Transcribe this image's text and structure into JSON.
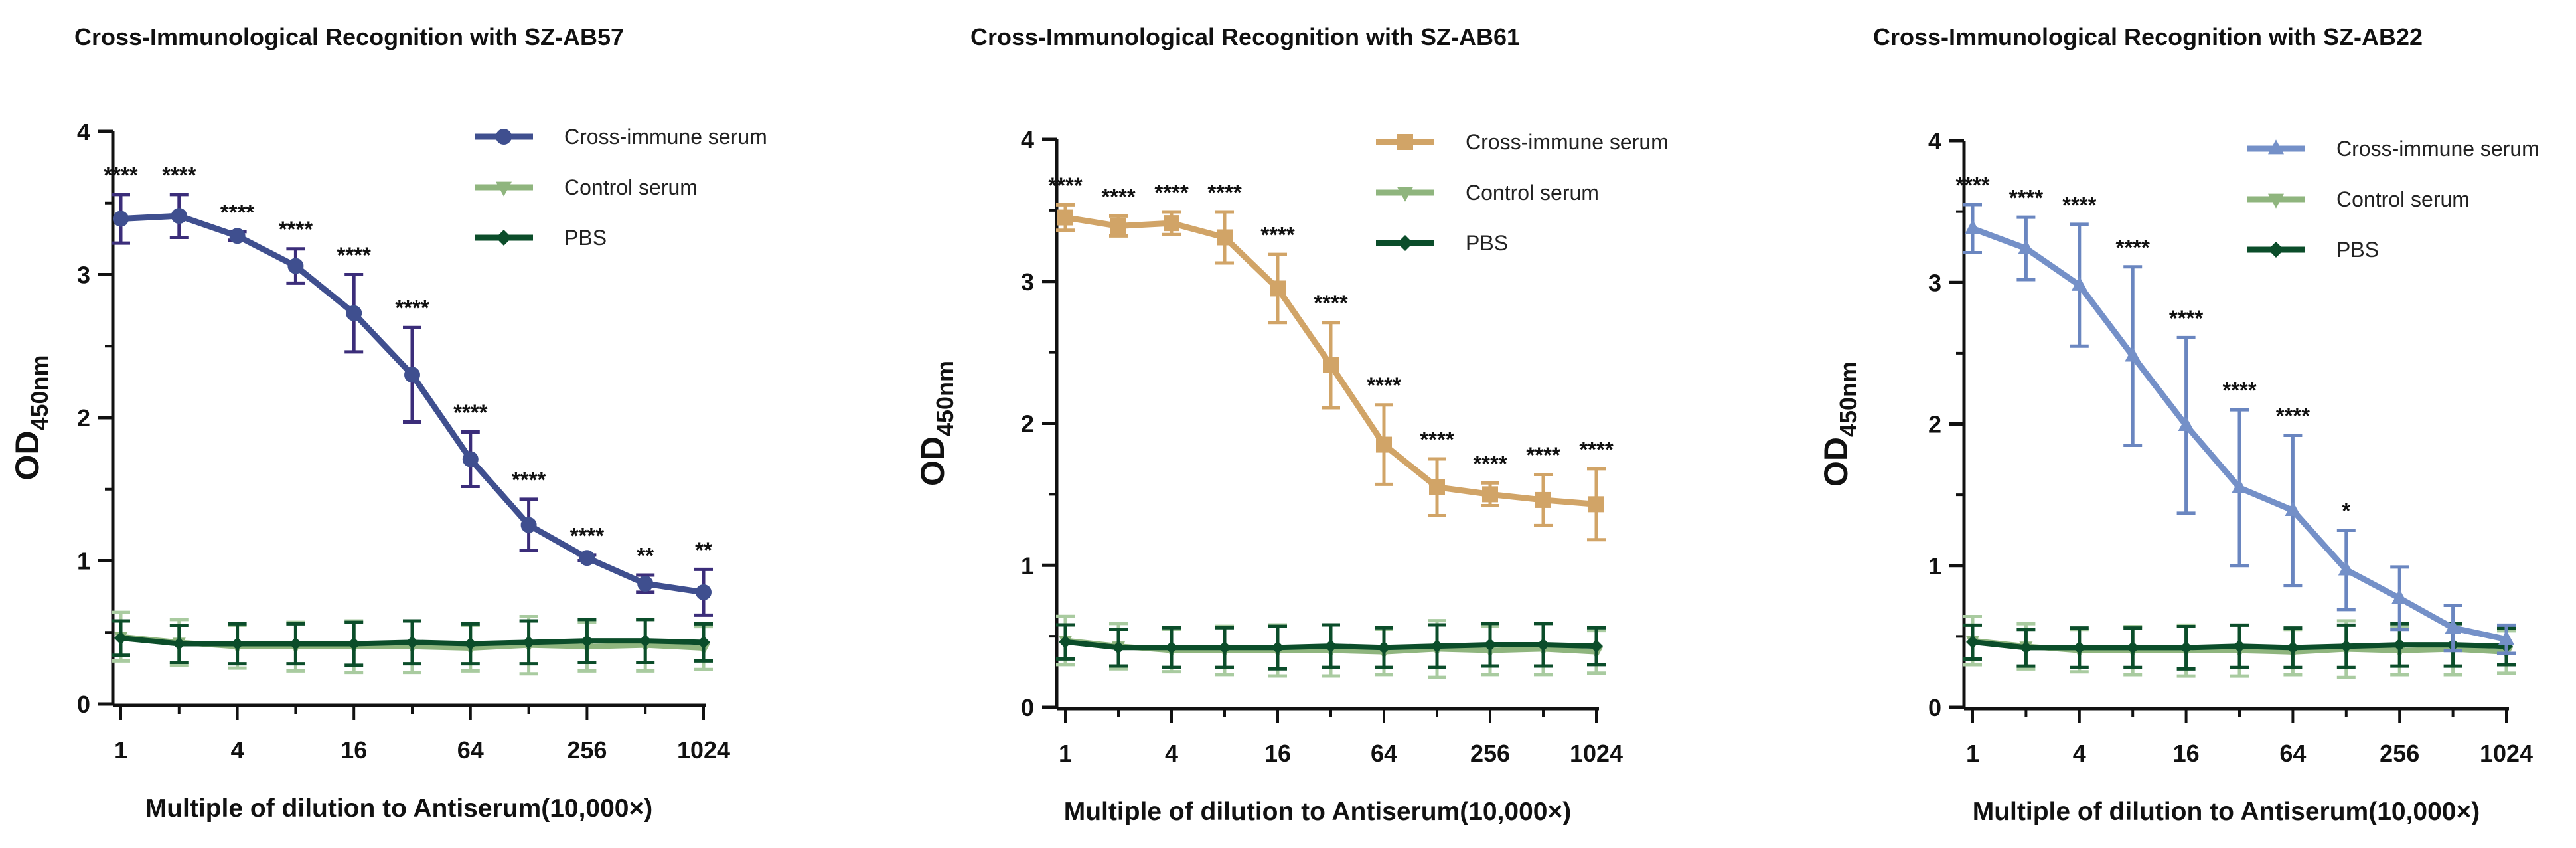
{
  "chart_data": [
    {
      "type": "line",
      "title": "Cross-Immunological Recognition with SZ-AB57",
      "xlabel": "Multiple of dilution to Antiserum(10,000×)",
      "ylabel": "OD",
      "ylabel_sub": "450nm",
      "x": [
        1,
        2,
        4,
        8,
        16,
        32,
        64,
        128,
        256,
        512,
        1024
      ],
      "x_scale": "log2",
      "xticks": [
        1,
        4,
        16,
        64,
        256,
        1024
      ],
      "xtick_labels": [
        "1",
        "4",
        "16",
        "64",
        "256",
        "1024"
      ],
      "ylim": [
        0,
        4
      ],
      "yticks": [
        "0",
        "1",
        "2",
        "3",
        "4"
      ],
      "series": [
        {
          "name": "Cross-immune serum",
          "color": "#3f4f8f",
          "err_color": "#3b2d7a",
          "marker": "circle",
          "values": [
            3.39,
            3.41,
            3.27,
            3.06,
            2.73,
            2.3,
            1.71,
            1.25,
            1.02,
            0.84,
            0.78
          ],
          "errors": [
            0.17,
            0.15,
            0.03,
            0.12,
            0.27,
            0.33,
            0.19,
            0.18,
            0.02,
            0.06,
            0.16
          ]
        },
        {
          "name": "Control serum",
          "color": "#8fb57e",
          "err_color": "#a9cba0",
          "marker": "triangle-down",
          "values": [
            0.47,
            0.43,
            0.4,
            0.4,
            0.4,
            0.4,
            0.39,
            0.41,
            0.4,
            0.41,
            0.39
          ],
          "errors": [
            0.17,
            0.16,
            0.15,
            0.17,
            0.18,
            0.18,
            0.16,
            0.2,
            0.17,
            0.18,
            0.15
          ]
        },
        {
          "name": "PBS",
          "color": "#0b4d2a",
          "err_color": "#0b4d2a",
          "marker": "diamond",
          "values": [
            0.46,
            0.42,
            0.42,
            0.42,
            0.42,
            0.43,
            0.42,
            0.43,
            0.44,
            0.44,
            0.43
          ],
          "errors": [
            0.12,
            0.13,
            0.14,
            0.14,
            0.15,
            0.15,
            0.14,
            0.15,
            0.15,
            0.15,
            0.13
          ]
        }
      ],
      "significance": [
        "****",
        "****",
        "****",
        "****",
        "****",
        "****",
        "****",
        "****",
        "****",
        "**",
        "**"
      ],
      "legend": "top-right"
    },
    {
      "type": "line",
      "title": "Cross-Immunological Recognition with SZ-AB61",
      "xlabel": "Multiple of dilution to Antiserum(10,000×)",
      "ylabel": "OD",
      "ylabel_sub": "450nm",
      "x": [
        1,
        2,
        4,
        8,
        16,
        32,
        64,
        128,
        256,
        512,
        1024
      ],
      "x_scale": "log2",
      "xticks": [
        1,
        4,
        16,
        64,
        256,
        1024
      ],
      "xtick_labels": [
        "1",
        "4",
        "16",
        "64",
        "256",
        "1024"
      ],
      "ylim": [
        0,
        4
      ],
      "yticks": [
        "0",
        "1",
        "2",
        "3",
        "4"
      ],
      "series": [
        {
          "name": "Cross-immune serum",
          "color": "#d1a467",
          "err_color": "#d1a467",
          "marker": "square",
          "values": [
            3.45,
            3.39,
            3.41,
            3.31,
            2.95,
            2.41,
            1.85,
            1.55,
            1.5,
            1.46,
            1.43
          ],
          "errors": [
            0.09,
            0.07,
            0.08,
            0.18,
            0.24,
            0.3,
            0.28,
            0.2,
            0.08,
            0.18,
            0.25
          ]
        },
        {
          "name": "Control serum",
          "color": "#8fb57e",
          "err_color": "#a9cba0",
          "marker": "triangle-down",
          "values": [
            0.47,
            0.43,
            0.4,
            0.4,
            0.4,
            0.4,
            0.39,
            0.41,
            0.4,
            0.41,
            0.39
          ],
          "errors": [
            0.17,
            0.16,
            0.15,
            0.17,
            0.18,
            0.18,
            0.16,
            0.2,
            0.17,
            0.18,
            0.15
          ]
        },
        {
          "name": "PBS",
          "color": "#0b4d2a",
          "err_color": "#0b4d2a",
          "marker": "diamond",
          "values": [
            0.46,
            0.42,
            0.42,
            0.42,
            0.42,
            0.43,
            0.42,
            0.43,
            0.44,
            0.44,
            0.43
          ],
          "errors": [
            0.12,
            0.13,
            0.14,
            0.14,
            0.15,
            0.15,
            0.14,
            0.15,
            0.15,
            0.15,
            0.13
          ]
        }
      ],
      "significance": [
        "****",
        "****",
        "****",
        "****",
        "****",
        "****",
        "****",
        "****",
        "****",
        "****",
        "****"
      ],
      "legend": "top-right"
    },
    {
      "type": "line",
      "title": "Cross-Immunological Recognition with SZ-AB22",
      "xlabel": "Multiple of dilution to Antiserum(10,000×)",
      "ylabel": "OD",
      "ylabel_sub": "450nm",
      "x": [
        1,
        2,
        4,
        8,
        16,
        32,
        64,
        128,
        256,
        512,
        1024
      ],
      "x_scale": "log2",
      "xticks": [
        1,
        4,
        16,
        64,
        256,
        1024
      ],
      "xtick_labels": [
        "1",
        "4",
        "16",
        "64",
        "256",
        "1024"
      ],
      "ylim": [
        0,
        4
      ],
      "yticks": [
        "0",
        "1",
        "2",
        "3",
        "4"
      ],
      "series": [
        {
          "name": "Cross-immune serum",
          "color": "#7490c8",
          "err_color": "#6a86c0",
          "marker": "triangle-up",
          "values": [
            3.38,
            3.24,
            2.98,
            2.48,
            1.99,
            1.55,
            1.39,
            0.97,
            0.77,
            0.56,
            0.48
          ],
          "errors": [
            0.17,
            0.22,
            0.43,
            0.63,
            0.62,
            0.55,
            0.53,
            0.28,
            0.22,
            0.16,
            0.1
          ]
        },
        {
          "name": "Control serum",
          "color": "#8fb57e",
          "err_color": "#a9cba0",
          "marker": "triangle-down",
          "values": [
            0.47,
            0.43,
            0.4,
            0.4,
            0.4,
            0.4,
            0.39,
            0.41,
            0.4,
            0.41,
            0.39
          ],
          "errors": [
            0.17,
            0.16,
            0.15,
            0.17,
            0.18,
            0.18,
            0.16,
            0.2,
            0.17,
            0.18,
            0.15
          ]
        },
        {
          "name": "PBS",
          "color": "#0b4d2a",
          "err_color": "#0b4d2a",
          "marker": "diamond",
          "values": [
            0.46,
            0.42,
            0.42,
            0.42,
            0.42,
            0.43,
            0.42,
            0.43,
            0.44,
            0.44,
            0.43
          ],
          "errors": [
            0.12,
            0.13,
            0.14,
            0.14,
            0.15,
            0.15,
            0.14,
            0.15,
            0.15,
            0.15,
            0.13
          ]
        }
      ],
      "significance": [
        "****",
        "****",
        "****",
        "****",
        "****",
        "****",
        "****",
        "*",
        "",
        "",
        ""
      ],
      "legend": "top-right"
    }
  ]
}
